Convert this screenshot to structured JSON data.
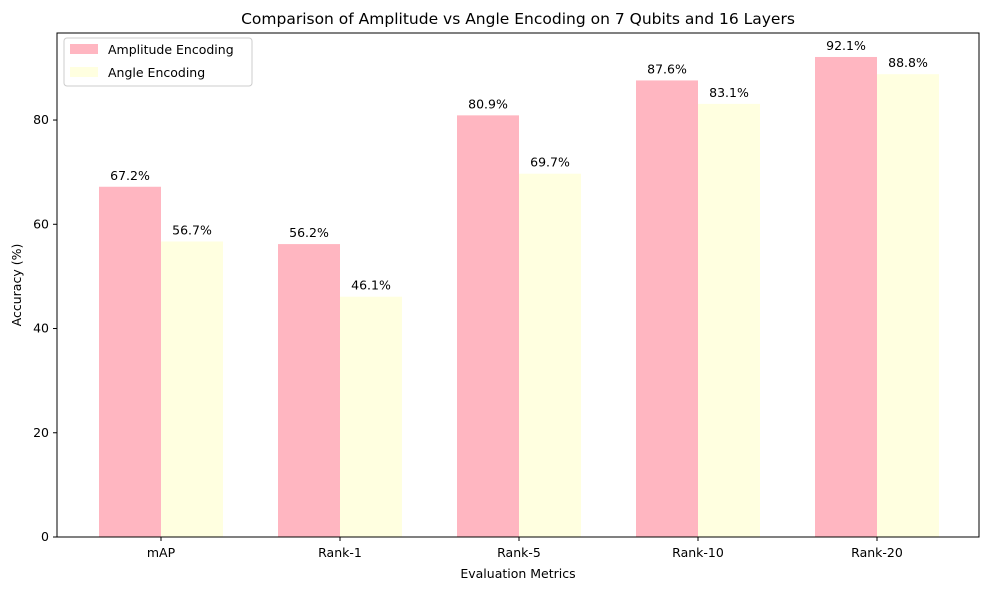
{
  "chart_data": {
    "type": "bar",
    "title": "Comparison of Amplitude vs Angle Encoding on 7 Qubits and 16 Layers",
    "xlabel": "Evaluation Metrics",
    "ylabel": "Accuracy (%)",
    "categories": [
      "mAP",
      "Rank-1",
      "Rank-5",
      "Rank-10",
      "Rank-20"
    ],
    "series": [
      {
        "name": "Amplitude Encoding",
        "color": "#FFB6C1",
        "values": [
          67.2,
          56.2,
          80.9,
          87.6,
          92.1
        ],
        "labels": [
          "67.2%",
          "56.2%",
          "80.9%",
          "87.6%",
          "92.1%"
        ]
      },
      {
        "name": "Angle Encoding",
        "color": "#FFFFE0",
        "values": [
          56.7,
          46.1,
          69.7,
          83.1,
          88.8
        ],
        "labels": [
          "56.7%",
          "46.1%",
          "69.7%",
          "83.1%",
          "88.8%"
        ]
      }
    ],
    "ylim": [
      0,
      96.7
    ],
    "yticks": [
      0,
      20,
      40,
      60,
      80
    ],
    "ytick_labels": [
      "0",
      "20",
      "40",
      "60",
      "80"
    ],
    "grid": false,
    "legend_position": "top-left"
  }
}
